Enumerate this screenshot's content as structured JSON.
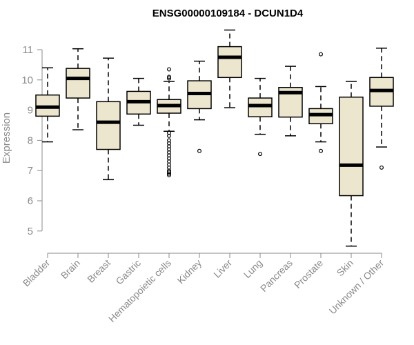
{
  "chart_data": {
    "type": "box",
    "title": "ENSG00000109184 - DCUN1D4",
    "xlabel": "",
    "ylabel": "Expression",
    "ylim": [
      4.3,
      11.8
    ],
    "yticks": [
      5,
      6,
      7,
      8,
      9,
      10,
      11
    ],
    "colors": {
      "box_fill": "#ede6cf",
      "stroke": "#000000",
      "axis_text": "#8a8a8a"
    },
    "categories": [
      "Bladder",
      "Brain",
      "Breast",
      "Gastric",
      "Hematopoietic cells",
      "Kidney",
      "Liver",
      "Lung",
      "Pancreas",
      "Prostate",
      "Skin",
      "Unknown / Other"
    ],
    "boxes": [
      {
        "category": "Bladder",
        "whisker_low": 7.95,
        "q1": 8.8,
        "median": 9.1,
        "q3": 9.5,
        "whisker_high": 10.4,
        "outliers": []
      },
      {
        "category": "Brain",
        "whisker_low": 8.35,
        "q1": 9.4,
        "median": 10.05,
        "q3": 10.38,
        "whisker_high": 11.03,
        "outliers": []
      },
      {
        "category": "Breast",
        "whisker_low": 6.7,
        "q1": 7.7,
        "median": 8.6,
        "q3": 9.28,
        "whisker_high": 10.72,
        "outliers": []
      },
      {
        "category": "Gastric",
        "whisker_low": 8.5,
        "q1": 8.87,
        "median": 9.28,
        "q3": 9.62,
        "whisker_high": 10.05,
        "outliers": []
      },
      {
        "category": "Hematopoietic cells",
        "whisker_low": 8.3,
        "q1": 8.9,
        "median": 9.15,
        "q3": 9.35,
        "whisker_high": 9.95,
        "outliers": [
          10.35,
          10.1,
          10.05,
          8.25,
          8.15,
          8.0,
          7.9,
          7.8,
          7.7,
          7.6,
          7.5,
          7.4,
          7.3,
          7.2,
          7.1,
          7.0,
          6.95,
          6.9,
          6.85
        ]
      },
      {
        "category": "Kidney",
        "whisker_low": 8.68,
        "q1": 9.05,
        "median": 9.55,
        "q3": 9.97,
        "whisker_high": 10.62,
        "outliers": [
          7.65
        ]
      },
      {
        "category": "Liver",
        "whisker_low": 9.08,
        "q1": 10.08,
        "median": 10.75,
        "q3": 11.1,
        "whisker_high": 11.65,
        "outliers": []
      },
      {
        "category": "Lung",
        "whisker_low": 8.2,
        "q1": 8.78,
        "median": 9.15,
        "q3": 9.4,
        "whisker_high": 10.05,
        "outliers": [
          7.55
        ]
      },
      {
        "category": "Pancreas",
        "whisker_low": 8.15,
        "q1": 8.77,
        "median": 9.58,
        "q3": 9.75,
        "whisker_high": 10.45,
        "outliers": []
      },
      {
        "category": "Prostate",
        "whisker_low": 7.95,
        "q1": 8.55,
        "median": 8.85,
        "q3": 9.05,
        "whisker_high": 9.78,
        "outliers": [
          10.85,
          7.65
        ]
      },
      {
        "category": "Skin",
        "whisker_low": 4.5,
        "q1": 6.17,
        "median": 7.18,
        "q3": 9.43,
        "whisker_high": 9.95,
        "outliers": []
      },
      {
        "category": "Unknown / Other",
        "whisker_low": 7.78,
        "q1": 9.13,
        "median": 9.65,
        "q3": 10.08,
        "whisker_high": 11.05,
        "outliers": [
          7.1
        ]
      }
    ]
  }
}
